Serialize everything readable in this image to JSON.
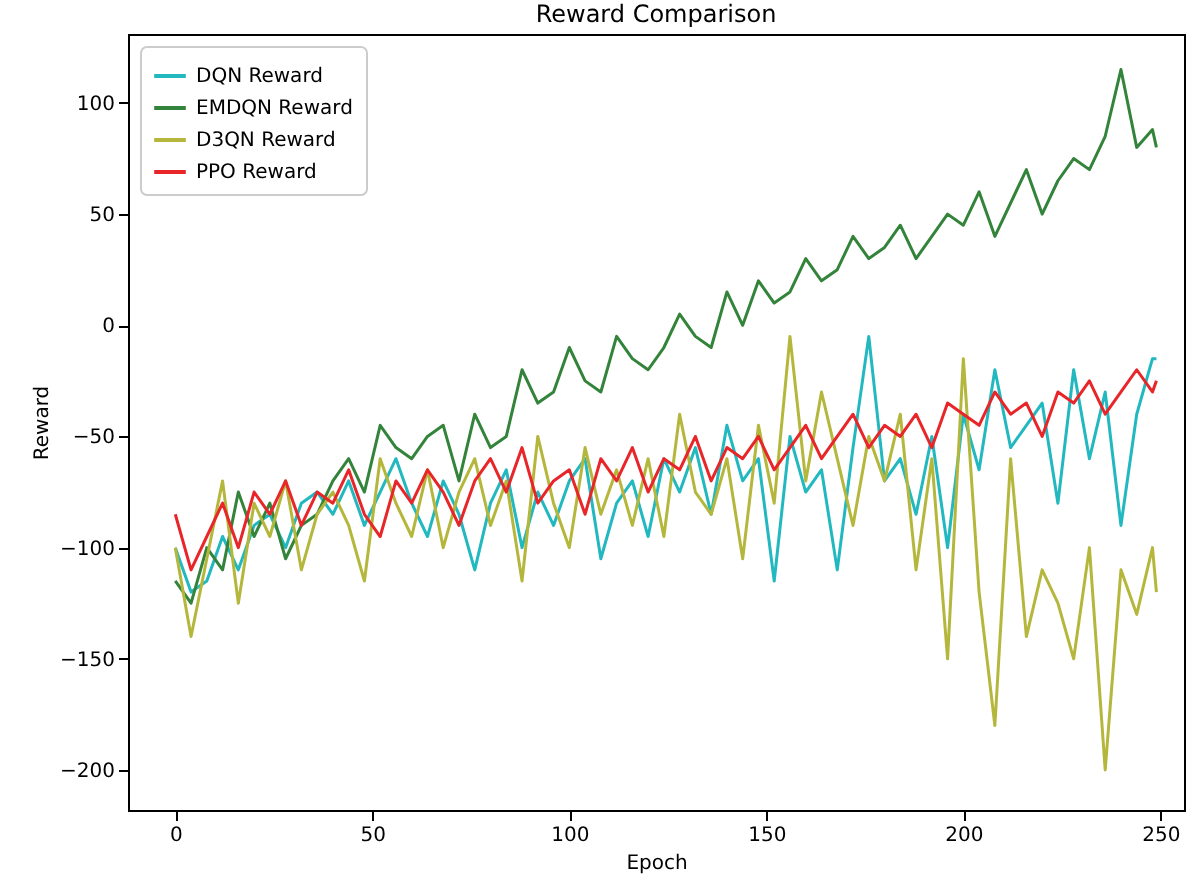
{
  "chart_data": {
    "type": "line",
    "title": "Reward Comparison",
    "xlabel": "Epoch",
    "ylabel": "Reward",
    "x": [
      0,
      4,
      8,
      12,
      16,
      20,
      24,
      28,
      32,
      36,
      40,
      44,
      48,
      52,
      56,
      60,
      64,
      68,
      72,
      76,
      80,
      84,
      88,
      92,
      96,
      100,
      104,
      108,
      112,
      116,
      120,
      124,
      128,
      132,
      136,
      140,
      144,
      148,
      152,
      156,
      160,
      164,
      168,
      172,
      176,
      180,
      184,
      188,
      192,
      196,
      200,
      204,
      208,
      212,
      216,
      220,
      224,
      228,
      232,
      236,
      240,
      244,
      248,
      249
    ],
    "xlim": [
      -12,
      256
    ],
    "xticks": [
      0,
      50,
      100,
      150,
      200,
      250
    ],
    "ylim": [
      -218,
      131
    ],
    "yticks": [
      -200,
      -150,
      -100,
      -50,
      0,
      50,
      100
    ],
    "grid": false,
    "legend": "top left",
    "series": [
      {
        "name": "DQN Reward",
        "color": "#22b8c0",
        "values": [
          -100,
          -120,
          -115,
          -95,
          -110,
          -90,
          -85,
          -100,
          -80,
          -75,
          -85,
          -70,
          -90,
          -75,
          -60,
          -80,
          -95,
          -70,
          -85,
          -110,
          -80,
          -65,
          -100,
          -75,
          -90,
          -70,
          -60,
          -105,
          -80,
          -70,
          -95,
          -60,
          -75,
          -55,
          -85,
          -45,
          -70,
          -60,
          -115,
          -50,
          -75,
          -65,
          -110,
          -55,
          -5,
          -70,
          -60,
          -85,
          -50,
          -100,
          -40,
          -65,
          -20,
          -55,
          -45,
          -35,
          -80,
          -20,
          -60,
          -30,
          -90,
          -40,
          -15,
          -15
        ]
      },
      {
        "name": "EMDQN Reward",
        "color": "#33843a",
        "values": [
          -115,
          -125,
          -100,
          -110,
          -75,
          -95,
          -80,
          -105,
          -90,
          -85,
          -70,
          -60,
          -75,
          -45,
          -55,
          -60,
          -50,
          -45,
          -70,
          -40,
          -55,
          -50,
          -20,
          -35,
          -30,
          -10,
          -25,
          -30,
          -5,
          -15,
          -20,
          -10,
          5,
          -5,
          -10,
          15,
          0,
          20,
          10,
          15,
          30,
          20,
          25,
          40,
          30,
          35,
          45,
          30,
          40,
          50,
          45,
          60,
          40,
          55,
          70,
          50,
          65,
          75,
          70,
          85,
          115,
          80,
          88,
          80
        ]
      },
      {
        "name": "D3QN Reward",
        "color": "#b5b73c",
        "values": [
          -100,
          -140,
          -105,
          -70,
          -125,
          -80,
          -95,
          -70,
          -110,
          -85,
          -75,
          -90,
          -115,
          -60,
          -80,
          -95,
          -65,
          -100,
          -75,
          -60,
          -90,
          -70,
          -115,
          -50,
          -80,
          -100,
          -55,
          -85,
          -65,
          -90,
          -60,
          -95,
          -40,
          -75,
          -85,
          -60,
          -105,
          -45,
          -80,
          -5,
          -70,
          -30,
          -60,
          -90,
          -50,
          -70,
          -40,
          -110,
          -60,
          -150,
          -15,
          -120,
          -180,
          -60,
          -140,
          -110,
          -125,
          -150,
          -100,
          -200,
          -110,
          -130,
          -100,
          -120
        ]
      },
      {
        "name": "PPO Reward",
        "color": "#e8262a",
        "values": [
          -85,
          -110,
          -95,
          -80,
          -100,
          -75,
          -85,
          -70,
          -90,
          -75,
          -80,
          -65,
          -85,
          -95,
          -70,
          -80,
          -65,
          -75,
          -90,
          -70,
          -60,
          -75,
          -55,
          -80,
          -70,
          -65,
          -85,
          -60,
          -70,
          -55,
          -75,
          -60,
          -65,
          -50,
          -70,
          -55,
          -60,
          -50,
          -65,
          -55,
          -45,
          -60,
          -50,
          -40,
          -55,
          -45,
          -50,
          -40,
          -55,
          -35,
          -40,
          -45,
          -30,
          -40,
          -35,
          -50,
          -30,
          -35,
          -25,
          -40,
          -30,
          -20,
          -30,
          -25
        ]
      }
    ]
  }
}
